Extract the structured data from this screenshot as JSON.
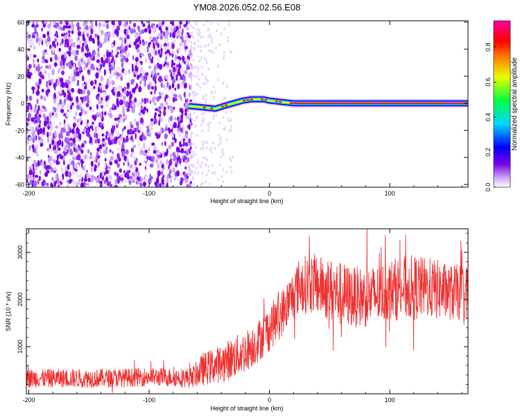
{
  "figure_title": "YM08.2026.052.02.56.E08",
  "chart_data": [
    {
      "type": "heatmap",
      "panel": "top",
      "title": "",
      "xlabel": "Height of straight line (km)",
      "ylabel": "Frequency (Hz)",
      "xlim": [
        -202,
        165
      ],
      "ylim": [
        -62,
        61
      ],
      "x_ticks": [
        -200,
        -100,
        0,
        100
      ],
      "x_tick_labels": [
        "-200",
        "-100",
        "0",
        "100"
      ],
      "y_ticks": [
        -60,
        -40,
        -20,
        0,
        20,
        40,
        60
      ],
      "y_tick_labels": [
        "-60",
        "-40",
        "-20",
        "0",
        "20",
        "40",
        "60"
      ],
      "noise_region_x": [
        -202,
        -65
      ],
      "ridge": {
        "x": [
          -67,
          -55,
          -45,
          -38,
          -30,
          -22,
          -15,
          -5,
          0,
          10,
          20,
          40,
          60,
          80,
          100,
          120,
          140,
          165
        ],
        "frequency": [
          -2,
          -3,
          -4,
          -2,
          0,
          2,
          3,
          3,
          2,
          1,
          0,
          0,
          0,
          0,
          0,
          0,
          0,
          0
        ]
      },
      "colorbar": {
        "label": "Normalized spectral amplitude",
        "range": [
          0,
          0.95
        ],
        "ticks": [
          0,
          0.2,
          0.4,
          0.6,
          0.8
        ],
        "tick_labels": [
          "0.0",
          "0.2",
          "0.4",
          "0.6",
          "0.8"
        ],
        "colormap": [
          "#ffffff",
          "#c8a0f8",
          "#7a00e6",
          "#0000ff",
          "#00d8ff",
          "#00ff40",
          "#e8ff00",
          "#ff8000",
          "#ff0000",
          "#ff00a0"
        ]
      },
      "grid": false
    },
    {
      "type": "line",
      "panel": "bottom",
      "title": "",
      "xlabel": "Height of straight line (km)",
      "ylabel": "SNR (10 * v/v)",
      "xlim": [
        -202,
        165
      ],
      "ylim": [
        0,
        3500
      ],
      "x_ticks": [
        -200,
        -100,
        0,
        100
      ],
      "x_tick_labels": [
        "-200",
        "-100",
        "0",
        "100"
      ],
      "y_ticks": [
        1000,
        2000,
        3000
      ],
      "y_tick_labels": [
        "1000",
        "2000",
        "3000"
      ],
      "series": [
        {
          "color": "#ee3030",
          "x": [
            -202,
            -180,
            -160,
            -140,
            -120,
            -100,
            -80,
            -65,
            -55,
            -40,
            -30,
            -20,
            -10,
            0,
            10,
            20,
            25,
            35,
            45,
            55,
            60,
            70,
            80,
            90,
            100,
            110,
            120,
            130,
            140,
            150,
            165
          ],
          "mean": [
            330,
            330,
            330,
            330,
            340,
            360,
            350,
            340,
            520,
            650,
            760,
            900,
            1100,
            1400,
            1700,
            2100,
            2300,
            2350,
            2250,
            2150,
            2100,
            2050,
            2050,
            2100,
            2200,
            2250,
            2250,
            2250,
            2200,
            2150,
            2150
          ],
          "spread": [
            200,
            200,
            200,
            200,
            200,
            200,
            200,
            220,
            350,
            400,
            450,
            450,
            450,
            500,
            500,
            550,
            600,
            650,
            650,
            700,
            700,
            650,
            650,
            650,
            650,
            700,
            700,
            650,
            650,
            600,
            600
          ]
        }
      ],
      "grid": false
    }
  ]
}
